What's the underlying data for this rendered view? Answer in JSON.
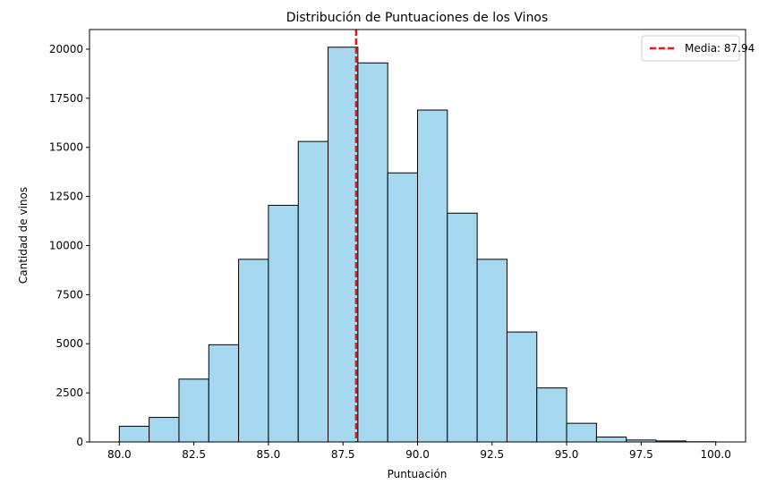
{
  "chart_data": {
    "type": "bar",
    "title": "Distribución de Puntuaciones de los Vinos",
    "xlabel": "Puntuación",
    "ylabel": "Cantidad de vinos",
    "xlim": [
      79.0,
      101.0
    ],
    "ylim": [
      0,
      21000
    ],
    "xticks": [
      80.0,
      82.5,
      85.0,
      87.5,
      90.0,
      92.5,
      95.0,
      97.5,
      100.0
    ],
    "xtick_labels": [
      "80.0",
      "82.5",
      "85.0",
      "87.5",
      "90.0",
      "92.5",
      "95.0",
      "97.5",
      "100.0"
    ],
    "yticks": [
      0,
      2500,
      5000,
      7500,
      10000,
      12500,
      15000,
      17500,
      20000
    ],
    "ytick_labels": [
      "0",
      "2500",
      "5000",
      "7500",
      "10000",
      "12500",
      "15000",
      "17500",
      "20000"
    ],
    "bin_edges": [
      80,
      81,
      82,
      83,
      84,
      85,
      86,
      87,
      88,
      89,
      90,
      91,
      92,
      93,
      94,
      95,
      96,
      97,
      98,
      99,
      100
    ],
    "counts": [
      800,
      1250,
      3200,
      4950,
      9300,
      12050,
      15300,
      20100,
      19300,
      13700,
      16900,
      11650,
      9300,
      5600,
      2750,
      950,
      250,
      100,
      50,
      10
    ],
    "bar_color": "#a6d9ef",
    "edge_color": "#000000",
    "mean_line": {
      "value": 87.94,
      "label": "Media: 87.94",
      "color": "#e31a1c"
    },
    "legend_position": "top-right",
    "grid": false
  }
}
